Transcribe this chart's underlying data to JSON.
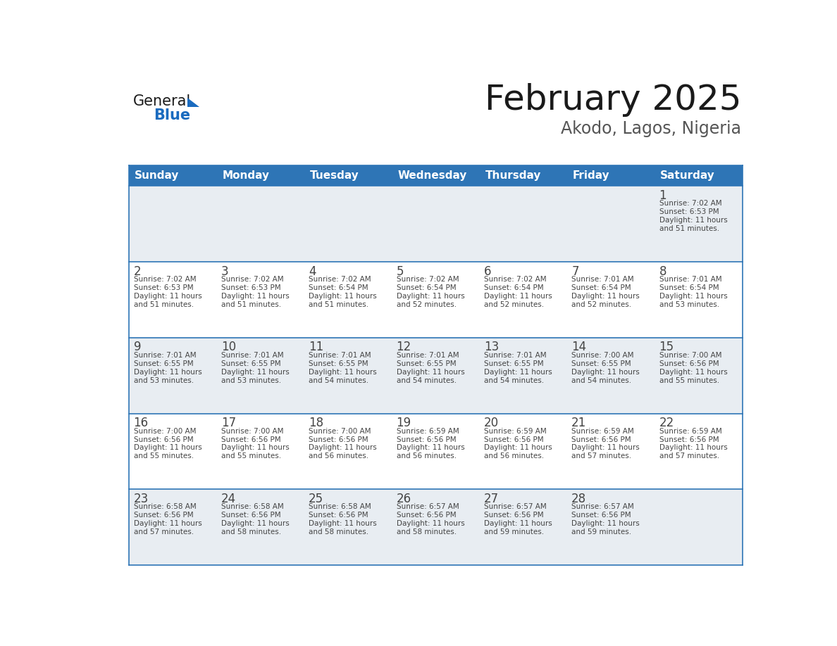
{
  "title": "February 2025",
  "subtitle": "Akodo, Lagos, Nigeria",
  "header_bg": "#2E75B6",
  "header_text_color": "#FFFFFF",
  "cell_border_color": "#2E75B6",
  "day_names": [
    "Sunday",
    "Monday",
    "Tuesday",
    "Wednesday",
    "Thursday",
    "Friday",
    "Saturday"
  ],
  "cal_data": [
    {
      "day": 1,
      "col": 6,
      "row": 0,
      "sunrise": "7:02 AM",
      "sunset": "6:53 PM",
      "daylight": "11 hours and 51 minutes"
    },
    {
      "day": 2,
      "col": 0,
      "row": 1,
      "sunrise": "7:02 AM",
      "sunset": "6:53 PM",
      "daylight": "11 hours and 51 minutes"
    },
    {
      "day": 3,
      "col": 1,
      "row": 1,
      "sunrise": "7:02 AM",
      "sunset": "6:53 PM",
      "daylight": "11 hours and 51 minutes"
    },
    {
      "day": 4,
      "col": 2,
      "row": 1,
      "sunrise": "7:02 AM",
      "sunset": "6:54 PM",
      "daylight": "11 hours and 51 minutes"
    },
    {
      "day": 5,
      "col": 3,
      "row": 1,
      "sunrise": "7:02 AM",
      "sunset": "6:54 PM",
      "daylight": "11 hours and 52 minutes"
    },
    {
      "day": 6,
      "col": 4,
      "row": 1,
      "sunrise": "7:02 AM",
      "sunset": "6:54 PM",
      "daylight": "11 hours and 52 minutes"
    },
    {
      "day": 7,
      "col": 5,
      "row": 1,
      "sunrise": "7:01 AM",
      "sunset": "6:54 PM",
      "daylight": "11 hours and 52 minutes"
    },
    {
      "day": 8,
      "col": 6,
      "row": 1,
      "sunrise": "7:01 AM",
      "sunset": "6:54 PM",
      "daylight": "11 hours and 53 minutes"
    },
    {
      "day": 9,
      "col": 0,
      "row": 2,
      "sunrise": "7:01 AM",
      "sunset": "6:55 PM",
      "daylight": "11 hours and 53 minutes"
    },
    {
      "day": 10,
      "col": 1,
      "row": 2,
      "sunrise": "7:01 AM",
      "sunset": "6:55 PM",
      "daylight": "11 hours and 53 minutes"
    },
    {
      "day": 11,
      "col": 2,
      "row": 2,
      "sunrise": "7:01 AM",
      "sunset": "6:55 PM",
      "daylight": "11 hours and 54 minutes"
    },
    {
      "day": 12,
      "col": 3,
      "row": 2,
      "sunrise": "7:01 AM",
      "sunset": "6:55 PM",
      "daylight": "11 hours and 54 minutes"
    },
    {
      "day": 13,
      "col": 4,
      "row": 2,
      "sunrise": "7:01 AM",
      "sunset": "6:55 PM",
      "daylight": "11 hours and 54 minutes"
    },
    {
      "day": 14,
      "col": 5,
      "row": 2,
      "sunrise": "7:00 AM",
      "sunset": "6:55 PM",
      "daylight": "11 hours and 54 minutes"
    },
    {
      "day": 15,
      "col": 6,
      "row": 2,
      "sunrise": "7:00 AM",
      "sunset": "6:56 PM",
      "daylight": "11 hours and 55 minutes"
    },
    {
      "day": 16,
      "col": 0,
      "row": 3,
      "sunrise": "7:00 AM",
      "sunset": "6:56 PM",
      "daylight": "11 hours and 55 minutes"
    },
    {
      "day": 17,
      "col": 1,
      "row": 3,
      "sunrise": "7:00 AM",
      "sunset": "6:56 PM",
      "daylight": "11 hours and 55 minutes"
    },
    {
      "day": 18,
      "col": 2,
      "row": 3,
      "sunrise": "7:00 AM",
      "sunset": "6:56 PM",
      "daylight": "11 hours and 56 minutes"
    },
    {
      "day": 19,
      "col": 3,
      "row": 3,
      "sunrise": "6:59 AM",
      "sunset": "6:56 PM",
      "daylight": "11 hours and 56 minutes"
    },
    {
      "day": 20,
      "col": 4,
      "row": 3,
      "sunrise": "6:59 AM",
      "sunset": "6:56 PM",
      "daylight": "11 hours and 56 minutes"
    },
    {
      "day": 21,
      "col": 5,
      "row": 3,
      "sunrise": "6:59 AM",
      "sunset": "6:56 PM",
      "daylight": "11 hours and 57 minutes"
    },
    {
      "day": 22,
      "col": 6,
      "row": 3,
      "sunrise": "6:59 AM",
      "sunset": "6:56 PM",
      "daylight": "11 hours and 57 minutes"
    },
    {
      "day": 23,
      "col": 0,
      "row": 4,
      "sunrise": "6:58 AM",
      "sunset": "6:56 PM",
      "daylight": "11 hours and 57 minutes"
    },
    {
      "day": 24,
      "col": 1,
      "row": 4,
      "sunrise": "6:58 AM",
      "sunset": "6:56 PM",
      "daylight": "11 hours and 58 minutes"
    },
    {
      "day": 25,
      "col": 2,
      "row": 4,
      "sunrise": "6:58 AM",
      "sunset": "6:56 PM",
      "daylight": "11 hours and 58 minutes"
    },
    {
      "day": 26,
      "col": 3,
      "row": 4,
      "sunrise": "6:57 AM",
      "sunset": "6:56 PM",
      "daylight": "11 hours and 58 minutes"
    },
    {
      "day": 27,
      "col": 4,
      "row": 4,
      "sunrise": "6:57 AM",
      "sunset": "6:56 PM",
      "daylight": "11 hours and 59 minutes"
    },
    {
      "day": 28,
      "col": 5,
      "row": 4,
      "sunrise": "6:57 AM",
      "sunset": "6:56 PM",
      "daylight": "11 hours and 59 minutes"
    }
  ],
  "logo_color_general": "#1a1a1a",
  "logo_color_blue": "#1a6bbf",
  "logo_triangle_color": "#1a6bbf",
  "background_color": "#FFFFFF",
  "row0_bg": "#E8EDF2",
  "row1_bg": "#FFFFFF",
  "row2_bg": "#E8EDF2",
  "row3_bg": "#FFFFFF",
  "row4_bg": "#E8EDF2",
  "cell_text_color": "#444444",
  "num_rows": 5,
  "fig_width": 11.88,
  "fig_height": 9.18,
  "dpi": 100
}
